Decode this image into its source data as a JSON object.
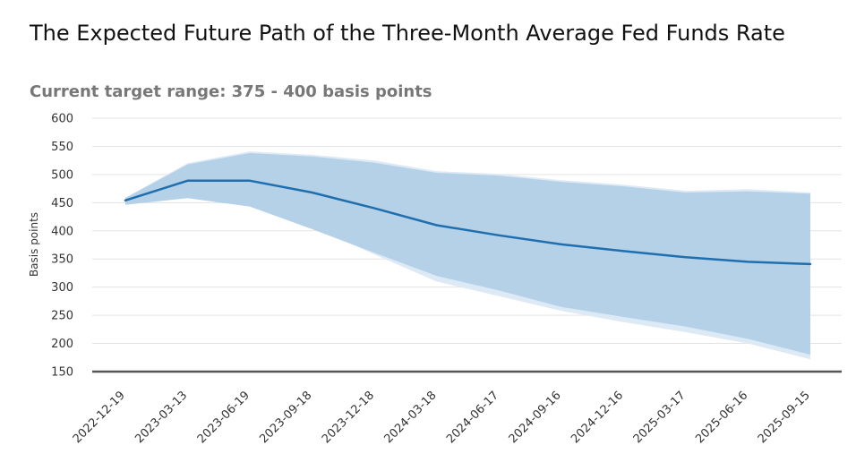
{
  "chart_data": {
    "type": "area",
    "title": "The Expected Future Path of the Three-Month Average Fed Funds Rate",
    "subtitle": "Current target range: 375 - 400 basis points",
    "xlabel": "",
    "ylabel": "Basis points",
    "ylim": [
      150,
      600
    ],
    "yticks": [
      150,
      200,
      250,
      300,
      350,
      400,
      450,
      500,
      550,
      600
    ],
    "grid": true,
    "x": [
      "2022-12-19",
      "2023-03-13",
      "2023-06-19",
      "2023-09-18",
      "2023-12-18",
      "2024-03-18",
      "2024-06-17",
      "2024-09-16",
      "2024-12-16",
      "2025-03-17",
      "2025-06-16",
      "2025-09-15"
    ],
    "series": [
      {
        "values": [
          454,
          489,
          489,
          468,
          440,
          410,
          392,
          376,
          364,
          353,
          345,
          341
        ]
      }
    ],
    "bands": [
      {
        "color": "#dde9f5",
        "upper": [
          459,
          520,
          541,
          535,
          525,
          506,
          501,
          490,
          482,
          471,
          474,
          468
        ],
        "lower": [
          448,
          460,
          445,
          408,
          358,
          310,
          284,
          258,
          238,
          220,
          200,
          172
        ]
      },
      {
        "color": "#b4d1e8",
        "upper": [
          458,
          518,
          538,
          532,
          521,
          503,
          498,
          487,
          479,
          468,
          470,
          466
        ],
        "lower": [
          446,
          458,
          443,
          403,
          361,
          320,
          294,
          265,
          247,
          230,
          208,
          180
        ]
      }
    ],
    "line_color": "#1f6fae",
    "axis_color": "#555555"
  }
}
